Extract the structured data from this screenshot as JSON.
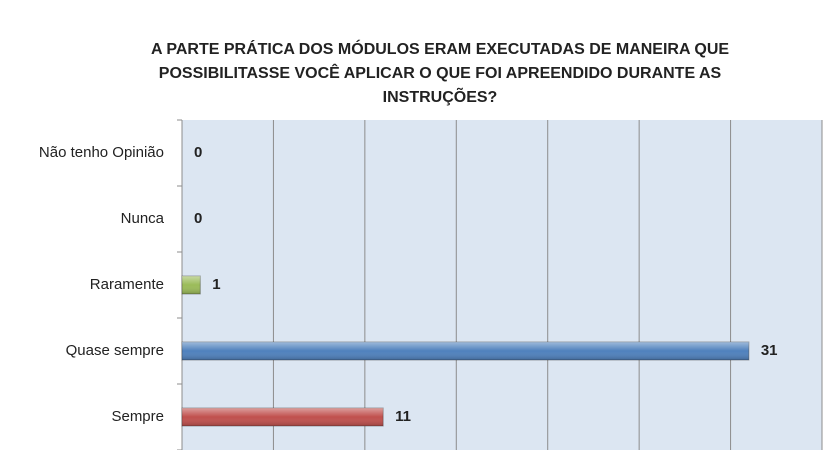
{
  "chart_data": {
    "type": "barh",
    "title": [
      "A PARTE PRÁTICA DOS MÓDULOS ERAM EXECUTADAS DE MANEIRA QUE",
      "POSSIBILITASSE VOCÊ APLICAR O QUE FOI APREENDIDO DURANTE AS",
      "INSTRUÇÕES?"
    ],
    "categories": [
      "Não tenho Opinião",
      "Nunca",
      "Raramente",
      "Quase sempre",
      "Sempre"
    ],
    "values": [
      0,
      0,
      1,
      31,
      11
    ],
    "colors": [
      "#8064a2",
      "#4bacc6",
      "#9bbb59",
      "#4f81bd",
      "#c0504d"
    ],
    "xlim": [
      0,
      35
    ],
    "xticks": [
      0,
      5,
      10,
      15,
      20,
      25,
      30,
      35
    ],
    "grid": true
  }
}
